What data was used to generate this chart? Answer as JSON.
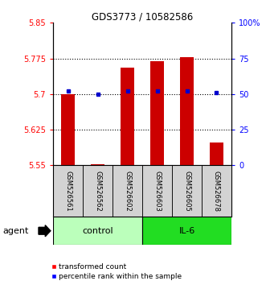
{
  "title": "GDS3773 / 10582586",
  "samples": [
    "GSM526561",
    "GSM526562",
    "GSM526602",
    "GSM526603",
    "GSM526605",
    "GSM526678"
  ],
  "red_values": [
    5.7,
    5.553,
    5.755,
    5.77,
    5.778,
    5.598
  ],
  "blue_percentile": [
    52,
    50,
    52,
    52,
    52,
    51
  ],
  "ylim_left": [
    5.55,
    5.85
  ],
  "ylim_right": [
    0,
    100
  ],
  "yticks_left": [
    5.55,
    5.625,
    5.7,
    5.775,
    5.85
  ],
  "ytick_labels_left": [
    "5.55",
    "5.625",
    "5.7",
    "5.775",
    "5.85"
  ],
  "yticks_right": [
    0,
    25,
    50,
    75,
    100
  ],
  "ytick_labels_right": [
    "0",
    "25",
    "50",
    "75",
    "100%"
  ],
  "hlines": [
    5.625,
    5.7,
    5.775
  ],
  "bar_color": "#cc0000",
  "dot_color": "#0000cc",
  "bar_bottom": 5.55,
  "control_color": "#bbffbb",
  "il6_color": "#22dd22",
  "legend_red_label": "transformed count",
  "legend_blue_label": "percentile rank within the sample",
  "agent_label": "agent"
}
